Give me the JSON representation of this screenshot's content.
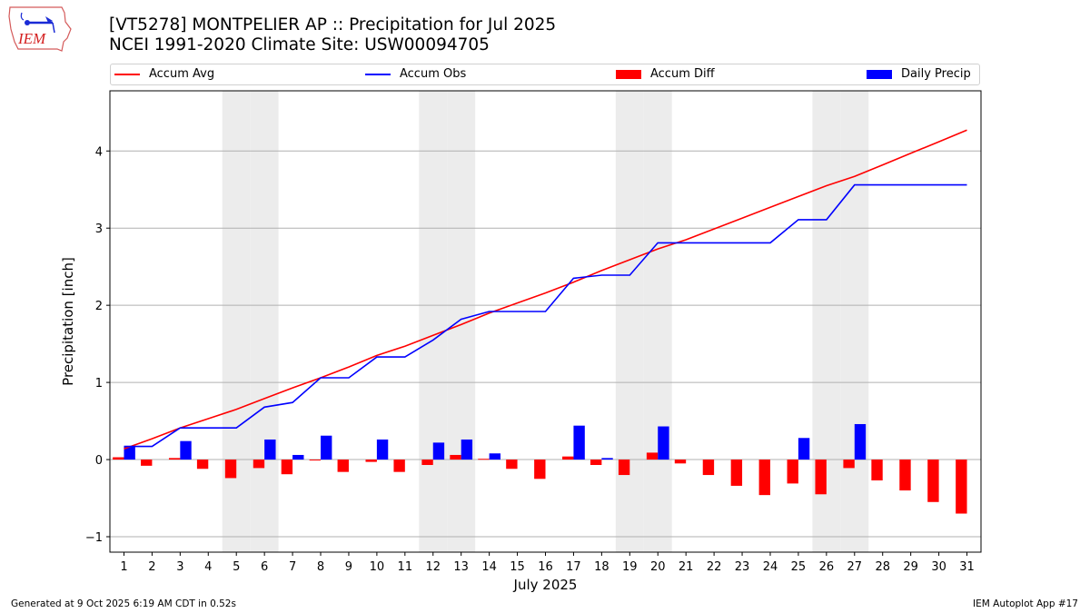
{
  "header": {
    "logo_text": "IEM",
    "title_line1": "[VT5278] MONTPELIER AP :: Precipitation for Jul 2025",
    "title_line2": "NCEI 1991-2020 Climate Site: USW00094705"
  },
  "legend": [
    {
      "label": "Accum Avg",
      "kind": "line",
      "color": "#ff0000"
    },
    {
      "label": "Accum Obs",
      "kind": "line",
      "color": "#0000ff"
    },
    {
      "label": "Accum Diff",
      "kind": "bar",
      "color": "#ff0000"
    },
    {
      "label": "Daily Precip",
      "kind": "bar",
      "color": "#0000ff"
    }
  ],
  "footer": {
    "generated": "Generated at 9 Oct 2025 6:19 AM CDT in 0.52s",
    "app": "IEM Autoplot App #17"
  },
  "chart_data": {
    "type": "bar",
    "title": "[VT5278] MONTPELIER AP :: Precipitation for Jul 2025",
    "subtitle": "NCEI 1991-2020 Climate Site: USW00094705",
    "xlabel": "July 2025",
    "ylabel": "Precipitation [inch]",
    "xlim": [
      0.5,
      31.5
    ],
    "ylim": [
      -1.2,
      4.78
    ],
    "yticks": [
      -1,
      0,
      1,
      2,
      3,
      4
    ],
    "ytick_labels": [
      "−1",
      "0",
      "1",
      "2",
      "3",
      "4"
    ],
    "grid": true,
    "legend_position": "top",
    "weekend_days": [
      5,
      6,
      12,
      13,
      19,
      20,
      26,
      27
    ],
    "x": [
      1,
      2,
      3,
      4,
      5,
      6,
      7,
      8,
      9,
      10,
      11,
      12,
      13,
      14,
      15,
      16,
      17,
      18,
      19,
      20,
      21,
      22,
      23,
      24,
      25,
      26,
      27,
      28,
      29,
      30,
      31
    ],
    "series": [
      {
        "name": "Accum Avg",
        "type": "line",
        "color": "#ff0000",
        "values": [
          0.14,
          0.27,
          0.41,
          0.53,
          0.65,
          0.79,
          0.93,
          1.06,
          1.2,
          1.35,
          1.47,
          1.61,
          1.75,
          1.9,
          2.03,
          2.16,
          2.3,
          2.45,
          2.59,
          2.73,
          2.85,
          2.99,
          3.13,
          3.27,
          3.41,
          3.55,
          3.67,
          3.82,
          3.97,
          4.12,
          4.27
        ]
      },
      {
        "name": "Accum Obs",
        "type": "line",
        "color": "#0000ff",
        "values": [
          0.17,
          0.17,
          0.41,
          0.41,
          0.41,
          0.68,
          0.74,
          1.06,
          1.06,
          1.33,
          1.33,
          1.55,
          1.82,
          1.92,
          1.92,
          1.92,
          2.35,
          2.39,
          2.39,
          2.81,
          2.81,
          2.81,
          2.81,
          2.81,
          3.11,
          3.11,
          3.56,
          3.56,
          3.56,
          3.56,
          3.56
        ]
      },
      {
        "name": "Accum Diff",
        "type": "bar",
        "color": "#ff0000",
        "values": [
          0.03,
          -0.08,
          0.02,
          -0.12,
          -0.24,
          -0.11,
          -0.19,
          -0.01,
          -0.16,
          -0.03,
          -0.16,
          -0.07,
          0.06,
          0.01,
          -0.12,
          -0.25,
          0.04,
          -0.07,
          -0.2,
          0.09,
          -0.05,
          -0.2,
          -0.34,
          -0.46,
          -0.31,
          -0.45,
          -0.11,
          -0.27,
          -0.4,
          -0.55,
          -0.7
        ]
      },
      {
        "name": "Daily Precip",
        "type": "bar",
        "color": "#0000ff",
        "values": [
          0.17,
          0,
          0.24,
          0,
          0,
          0.26,
          0.06,
          0.31,
          0,
          0.26,
          0,
          0.22,
          0.26,
          0.08,
          0,
          0,
          0.44,
          0.02,
          0,
          0.43,
          0,
          0,
          0,
          0,
          0.28,
          0,
          0.46,
          0,
          0,
          0,
          0
        ]
      }
    ]
  }
}
